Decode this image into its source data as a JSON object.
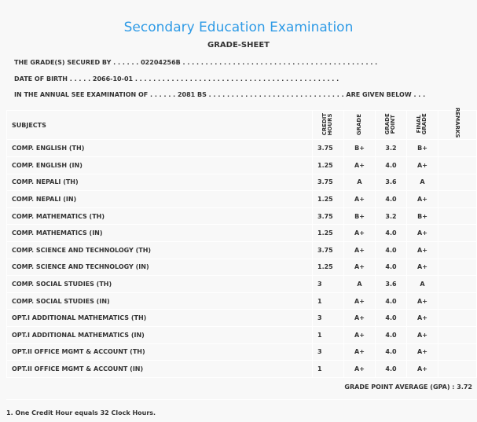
{
  "header": {
    "title": "Secondary Education Examination",
    "subtitle": "GRADE-SHEET"
  },
  "info": {
    "secured_by": "THE GRADE(S) SECURED BY . . . . . . 02204256B . . . . . . . . . . . . . . . . . . . . . . . . . . . . . . . . . . . . . . . . . . .",
    "dob": "DATE OF BIRTH . . . . . 2066-10-01 . . . . . . . . . . . . . . . . . . . . . . . . . . . . . . . . . . . . . . . . . . . . .",
    "exam": "IN THE ANNUAL SEE EXAMINATION OF . . . . . . 2081 BS . . . . . . . . . . . . . . . . . . . . . . . . . . . . . . ARE GIVEN BELOW . . ."
  },
  "table": {
    "headers": {
      "subjects": "SUBJECTS",
      "credit": "CREDIT HOURS",
      "grade": "GRADE",
      "gp": "GRADE POINT",
      "final": "FINAL GRADE",
      "remarks": "REMARKS"
    },
    "rows": [
      [
        "COMP. ENGLISH (TH)",
        "3.75",
        "B+",
        "3.2",
        "B+"
      ],
      [
        "COMP. ENGLISH (IN)",
        "1.25",
        "A+",
        "4.0",
        "A+"
      ],
      [
        "COMP. NEPALI (TH)",
        "3.75",
        "A",
        "3.6",
        "A"
      ],
      [
        "COMP. NEPALI (IN)",
        "1.25",
        "A+",
        "4.0",
        "A+"
      ],
      [
        "COMP. MATHEMATICS (TH)",
        "3.75",
        "B+",
        "3.2",
        "B+"
      ],
      [
        "COMP. MATHEMATICS (IN)",
        "1.25",
        "A+",
        "4.0",
        "A+"
      ],
      [
        "COMP. SCIENCE AND TECHNOLOGY (TH)",
        "3.75",
        "A+",
        "4.0",
        "A+"
      ],
      [
        "COMP. SCIENCE AND TECHNOLOGY (IN)",
        "1.25",
        "A+",
        "4.0",
        "A+"
      ],
      [
        "COMP. SOCIAL STUDIES (TH)",
        "3",
        "A",
        "3.6",
        "A"
      ],
      [
        "COMP. SOCIAL STUDIES (IN)",
        "1",
        "A+",
        "4.0",
        "A+"
      ],
      [
        "OPT.I ADDITIONAL MATHEMATICS (TH)",
        "3",
        "A+",
        "4.0",
        "A+"
      ],
      [
        "OPT.I ADDITIONAL MATHEMATICS (IN)",
        "1",
        "A+",
        "4.0",
        "A+"
      ],
      [
        "OPT.II OFFICE MGMT & ACCOUNT (TH)",
        "3",
        "A+",
        "4.0",
        "A+"
      ],
      [
        "OPT.II OFFICE MGMT & ACCOUNT (IN)",
        "1",
        "A+",
        "4.0",
        "A+"
      ]
    ]
  },
  "gpa": "GRADE POINT AVERAGE (GPA) : 3.72",
  "note": "1. One Credit Hour equals 32 Clock Hours.",
  "colors": {
    "title": "#2f9be6",
    "text": "#333333",
    "background": "#f8f8f8"
  }
}
